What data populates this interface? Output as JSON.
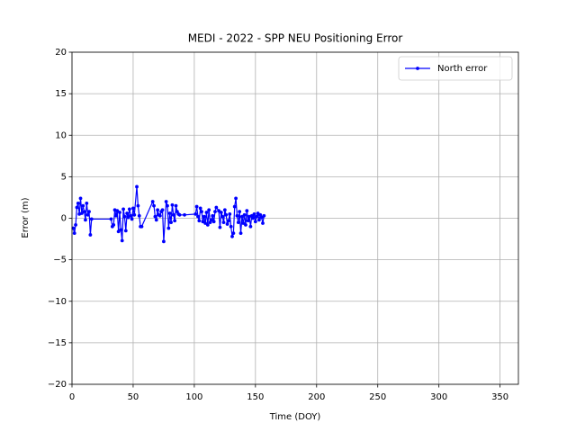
{
  "chart_data": {
    "type": "line",
    "title": "MEDI - 2022 - SPP NEU Positioning Error",
    "x_label": "Time (DOY)",
    "y_label": "Error (m)",
    "x": [
      1,
      2,
      3,
      4,
      5,
      6,
      7,
      8,
      9,
      10,
      11,
      12,
      13,
      14,
      15,
      16,
      32,
      33,
      34,
      35,
      36,
      37,
      38,
      39,
      40,
      41,
      42,
      43,
      44,
      45,
      46,
      47,
      48,
      49,
      50,
      51,
      53,
      54,
      55,
      56,
      57,
      66,
      67,
      68,
      69,
      70,
      71,
      72,
      73,
      74,
      75,
      77,
      78,
      79,
      80,
      81,
      82,
      83,
      84,
      85,
      86,
      87,
      88,
      92,
      101,
      102,
      103,
      104,
      105,
      106,
      107,
      108,
      109,
      110,
      111,
      112,
      113,
      114,
      115,
      116,
      117,
      118,
      120,
      121,
      122,
      123,
      124,
      125,
      126,
      127,
      128,
      129,
      130,
      131,
      132,
      133,
      134,
      135,
      136,
      137,
      138,
      139,
      140,
      141,
      142,
      143,
      144,
      145,
      146,
      147,
      148,
      149,
      150,
      151,
      152,
      153,
      154,
      155,
      156,
      157
    ],
    "series": [
      {
        "name": "North error",
        "color": "#0000ff",
        "values": [
          -1.2,
          -1.8,
          -0.8,
          1.3,
          1.8,
          0.5,
          2.4,
          0.6,
          1.5,
          0.8,
          -0.2,
          1.8,
          0.4,
          0.8,
          -2.0,
          -0.1,
          -0.1,
          -1.0,
          -0.8,
          1.0,
          0.3,
          0.9,
          -1.6,
          0.7,
          -1.4,
          -2.7,
          1.1,
          0.2,
          -1.5,
          0.6,
          0.1,
          1.1,
          0.3,
          -0.1,
          1.2,
          0.4,
          3.8,
          1.5,
          0.3,
          -1.0,
          -1.0,
          2.0,
          1.5,
          0.2,
          -0.2,
          1.0,
          0.4,
          0.3,
          0.8,
          1.0,
          -2.8,
          2.0,
          1.5,
          -1.2,
          0.6,
          -0.5,
          1.6,
          0.4,
          -0.3,
          1.5,
          0.8,
          0.5,
          0.4,
          0.4,
          0.5,
          1.4,
          0.2,
          -0.3,
          1.2,
          0.8,
          -0.4,
          0.2,
          -0.6,
          0.7,
          -0.8,
          1.0,
          -0.5,
          -0.2,
          0.3,
          -0.4,
          0.8,
          1.3,
          0.9,
          -1.1,
          0.7,
          0.2,
          -0.5,
          1.0,
          0.4,
          -0.7,
          -0.3,
          0.5,
          -1.0,
          -2.2,
          -1.8,
          1.4,
          2.4,
          0.3,
          -0.5,
          0.8,
          -1.8,
          0.2,
          -0.6,
          0.4,
          -0.8,
          0.9,
          -0.3,
          0.2,
          -1.0,
          0.3,
          0.0,
          0.5,
          -0.4,
          0.2,
          0.6,
          -0.2,
          0.4,
          0.1,
          -0.6,
          0.3
        ]
      }
    ],
    "xlim": [
      0,
      365
    ],
    "xticks": [
      0,
      50,
      100,
      150,
      200,
      250,
      300,
      350
    ],
    "ylim": [
      -20,
      20
    ],
    "yticks": [
      {
        "value": -20,
        "label": "−20"
      },
      {
        "value": -15,
        "label": "−15"
      },
      {
        "value": -10,
        "label": "−10"
      },
      {
        "value": -5,
        "label": "−5"
      },
      0,
      5,
      10,
      15,
      20
    ],
    "grid": true,
    "legend": "upper right"
  }
}
